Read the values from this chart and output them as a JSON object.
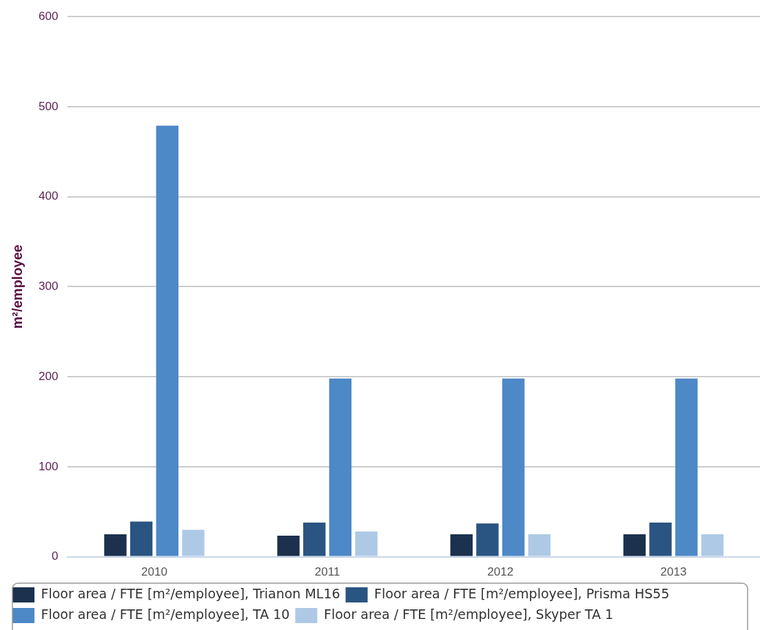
{
  "chart_data": {
    "type": "bar",
    "ylabel": "m²/employee",
    "categories": [
      "2010",
      "2011",
      "2012",
      "2013"
    ],
    "series": [
      {
        "name": "Floor area / FTE [m²/employee], Trianon ML16",
        "color": "#1b314d",
        "values": [
          25,
          23.5,
          25,
          25
        ]
      },
      {
        "name": "Floor area / FTE [m²/employee], Prisma HS55",
        "color": "#2a5481",
        "values": [
          39,
          38,
          37,
          38
        ]
      },
      {
        "name": "Floor area / FTE [m²/employee], TA 10",
        "color": "#4d88c7",
        "values": [
          479,
          198,
          198,
          198
        ]
      },
      {
        "name": "Floor area / FTE [m²/employee], Skyper TA 1",
        "color": "#adc9e6",
        "values": [
          30,
          28,
          25,
          25
        ]
      }
    ],
    "ylim": [
      0,
      600
    ],
    "yticks": [
      0,
      100,
      200,
      300,
      400,
      500,
      600
    ],
    "grid": "y",
    "legend": "bottom"
  }
}
